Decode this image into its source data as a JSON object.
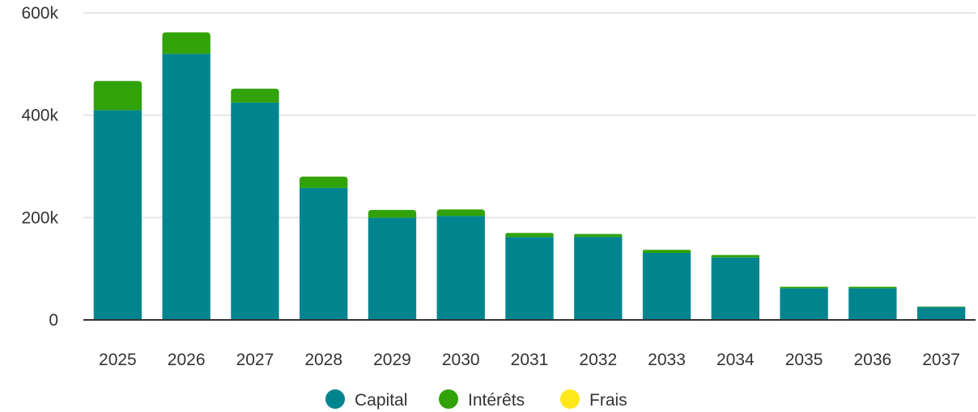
{
  "chart_data": {
    "type": "bar",
    "stacked": true,
    "categories": [
      "2025",
      "2026",
      "2027",
      "2028",
      "2029",
      "2030",
      "2031",
      "2032",
      "2033",
      "2034",
      "2035",
      "2036",
      "2037"
    ],
    "series": [
      {
        "name": "Capital",
        "color": "#00858f",
        "values": [
          410000,
          520000,
          425000,
          258000,
          200000,
          203000,
          162000,
          162000,
          131000,
          122000,
          62000,
          62000,
          25000
        ]
      },
      {
        "name": "Intérêts",
        "color": "#31a208",
        "values": [
          57000,
          42000,
          27000,
          22000,
          15000,
          13000,
          8000,
          6000,
          6000,
          5000,
          3000,
          3000,
          1000
        ]
      },
      {
        "name": "Frais",
        "color": "#ffe81a",
        "values": [
          0,
          0,
          0,
          0,
          0,
          0,
          0,
          0,
          0,
          0,
          0,
          0,
          0
        ]
      }
    ],
    "ylim": [
      0,
      600000
    ],
    "yticks": [
      0,
      200000,
      400000,
      600000
    ],
    "ytick_labels": [
      "0",
      "200k",
      "400k",
      "600k"
    ],
    "grid": true,
    "legend": "bottom-center"
  }
}
